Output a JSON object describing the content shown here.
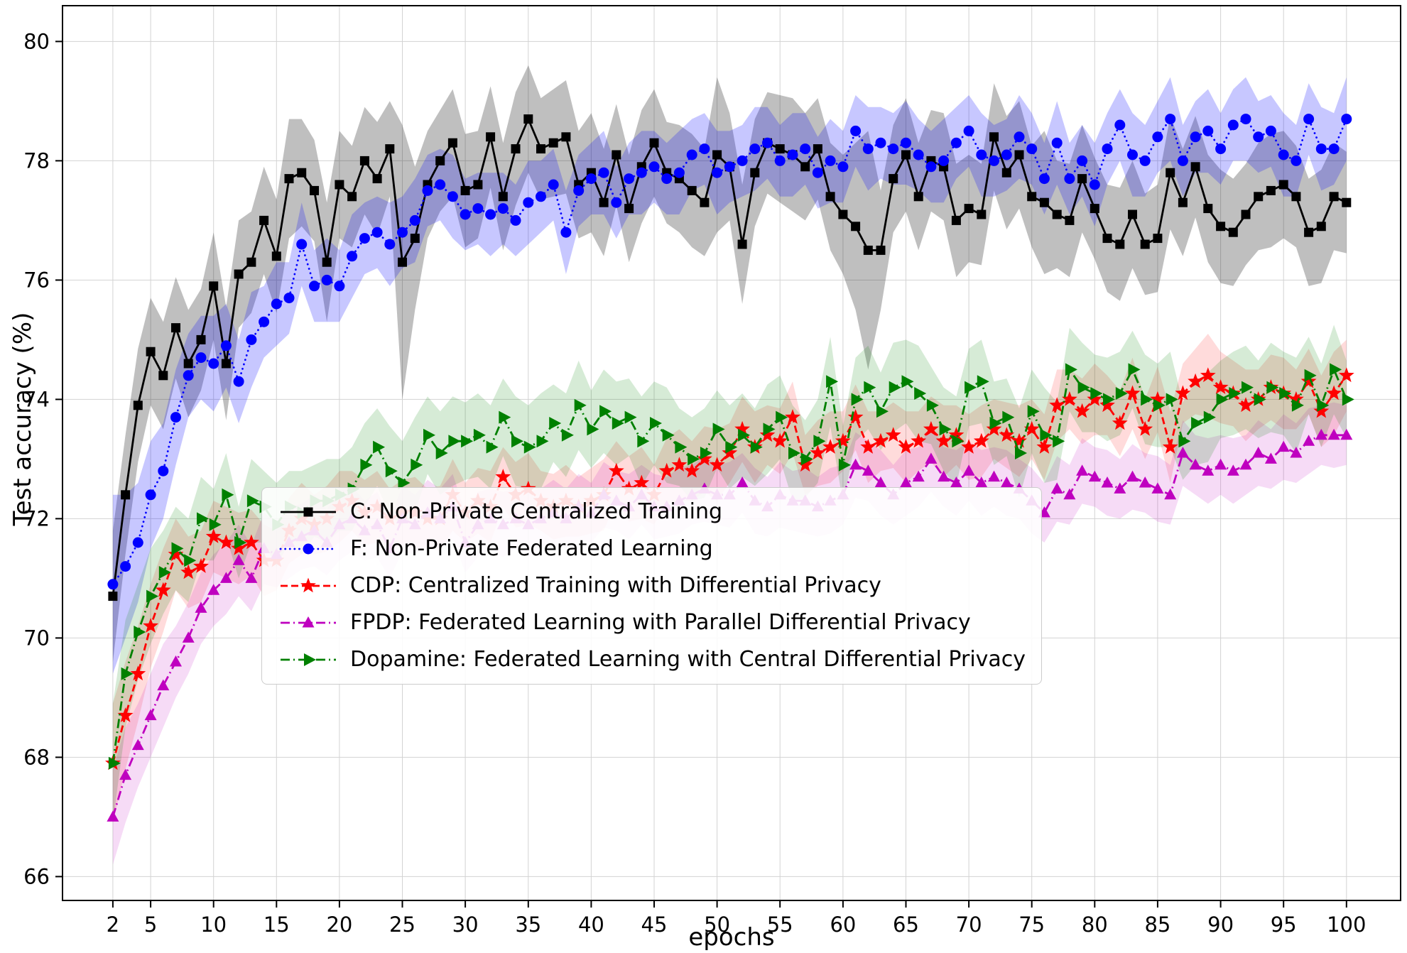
{
  "figure": {
    "xlabel": "epochs",
    "ylabel": "Test accuracy (%)"
  },
  "chart_data": {
    "type": "line",
    "title": "",
    "xlabel": "epochs",
    "ylabel": "Test accuracy (%)",
    "grid": true,
    "legend_position": "lower center, inside axes",
    "xlim": [
      -2,
      104.3
    ],
    "ylim": [
      65.6,
      80.6
    ],
    "xticks": [
      2,
      5,
      10,
      15,
      20,
      25,
      30,
      35,
      40,
      45,
      50,
      55,
      60,
      65,
      70,
      75,
      80,
      85,
      90,
      95,
      100
    ],
    "yticks": [
      66,
      68,
      70,
      72,
      74,
      76,
      78,
      80
    ],
    "x": [
      2,
      3,
      4,
      5,
      6,
      7,
      8,
      9,
      10,
      11,
      12,
      13,
      14,
      15,
      16,
      17,
      18,
      19,
      20,
      21,
      22,
      23,
      24,
      25,
      26,
      27,
      28,
      29,
      30,
      31,
      32,
      33,
      34,
      35,
      36,
      37,
      38,
      39,
      40,
      41,
      42,
      43,
      44,
      45,
      46,
      47,
      48,
      49,
      50,
      51,
      52,
      53,
      54,
      55,
      56,
      57,
      58,
      59,
      60,
      61,
      62,
      63,
      64,
      65,
      66,
      67,
      68,
      69,
      70,
      71,
      72,
      73,
      74,
      75,
      76,
      77,
      78,
      79,
      80,
      81,
      82,
      83,
      84,
      85,
      86,
      87,
      88,
      89,
      90,
      91,
      92,
      93,
      94,
      95,
      96,
      97,
      98,
      99,
      100
    ],
    "series": [
      {
        "id": "c",
        "label": "C: Non-Private Centralized Training",
        "color": "#000000",
        "marker": "square",
        "linestyle": "solid",
        "band_opacity": 0.25,
        "values": [
          70.7,
          72.4,
          73.9,
          74.8,
          74.4,
          75.2,
          74.6,
          75.0,
          75.9,
          74.6,
          76.1,
          76.3,
          77.0,
          76.4,
          77.7,
          77.8,
          77.5,
          76.3,
          77.6,
          77.4,
          78.0,
          77.7,
          78.2,
          76.3,
          76.7,
          77.6,
          78.0,
          78.3,
          77.5,
          77.6,
          78.4,
          77.4,
          78.2,
          78.7,
          78.2,
          78.3,
          78.4,
          77.6,
          77.8,
          77.3,
          78.1,
          77.2,
          77.9,
          78.3,
          77.8,
          77.7,
          77.5,
          77.3,
          78.1,
          77.9,
          76.6,
          77.8,
          78.3,
          78.2,
          78.1,
          77.9,
          78.2,
          77.4,
          77.1,
          76.9,
          76.5,
          76.5,
          77.7,
          78.1,
          77.4,
          78.0,
          77.9,
          77.0,
          77.2,
          77.1,
          78.4,
          77.8,
          78.1,
          77.4,
          77.3,
          77.1,
          77.0,
          77.7,
          77.2,
          76.7,
          76.6,
          77.1,
          76.6,
          76.7,
          77.8,
          77.3,
          77.9,
          77.2,
          76.9,
          76.8,
          77.1,
          77.4,
          77.5,
          77.6,
          77.4,
          76.8,
          76.9,
          77.4,
          77.3
        ],
        "band": [
          1.1,
          1.0,
          0.95,
          0.9,
          0.9,
          0.85,
          0.9,
          0.85,
          0.9,
          0.95,
          0.9,
          0.85,
          0.9,
          0.95,
          1.0,
          0.9,
          0.85,
          1.0,
          0.9,
          0.85,
          0.9,
          0.95,
          0.8,
          2.3,
          1.2,
          0.9,
          0.85,
          0.9,
          0.95,
          0.9,
          0.85,
          0.9,
          0.95,
          0.9,
          0.85,
          0.9,
          0.95,
          0.9,
          1.0,
          0.9,
          0.85,
          0.9,
          0.95,
          0.9,
          0.85,
          0.9,
          0.95,
          0.9,
          1.3,
          0.9,
          1.0,
          0.9,
          0.85,
          0.9,
          0.95,
          0.9,
          0.85,
          0.9,
          1.0,
          1.4,
          2.0,
          1.0,
          0.9,
          0.95,
          0.9,
          0.85,
          0.9,
          0.95,
          0.9,
          0.85,
          0.9,
          0.95,
          0.9,
          0.85,
          1.2,
          0.9,
          0.95,
          0.9,
          0.85,
          0.9,
          0.95,
          0.9,
          0.85,
          0.9,
          0.95,
          0.9,
          0.85,
          0.9,
          0.95,
          0.9,
          0.85,
          0.9,
          0.95,
          0.9,
          0.85,
          0.9,
          0.95,
          0.9,
          0.85
        ]
      },
      {
        "id": "f",
        "label": "F: Non-Private Federated Learning",
        "color": "#0000ff",
        "marker": "circle",
        "linestyle": "dotted",
        "band_opacity": 0.22,
        "values": [
          70.9,
          71.2,
          71.6,
          72.4,
          72.8,
          73.7,
          74.4,
          74.7,
          74.6,
          74.9,
          74.3,
          75.0,
          75.3,
          75.6,
          75.7,
          76.6,
          75.9,
          76.0,
          75.9,
          76.4,
          76.7,
          76.8,
          76.6,
          76.8,
          77.0,
          77.5,
          77.6,
          77.4,
          77.1,
          77.2,
          77.1,
          77.2,
          77.0,
          77.3,
          77.4,
          77.6,
          76.8,
          77.5,
          77.7,
          77.8,
          77.3,
          77.7,
          77.8,
          77.9,
          77.7,
          77.8,
          78.1,
          78.2,
          77.8,
          77.9,
          78.0,
          78.2,
          78.3,
          78.0,
          78.1,
          78.2,
          77.8,
          78.0,
          77.9,
          78.5,
          78.2,
          78.3,
          78.2,
          78.3,
          78.1,
          77.9,
          78.0,
          78.3,
          78.5,
          78.1,
          78.0,
          78.1,
          78.4,
          78.2,
          77.7,
          78.3,
          77.7,
          78.0,
          77.6,
          78.2,
          78.6,
          78.1,
          78.0,
          78.4,
          78.7,
          78.0,
          78.4,
          78.5,
          78.2,
          78.6,
          78.7,
          78.4,
          78.5,
          78.1,
          78.0,
          78.7,
          78.2,
          78.2,
          78.7
        ],
        "band": [
          1.5,
          1.2,
          1.0,
          0.9,
          0.8,
          0.8,
          0.7,
          0.7,
          0.8,
          0.7,
          0.7,
          0.8,
          0.6,
          0.7,
          0.6,
          0.7,
          0.6,
          0.7,
          0.6,
          0.7,
          0.6,
          0.6,
          0.7,
          0.6,
          0.7,
          0.6,
          0.6,
          0.7,
          0.6,
          0.6,
          0.7,
          0.6,
          0.6,
          0.7,
          0.6,
          0.6,
          0.7,
          0.6,
          0.6,
          0.7,
          0.6,
          0.6,
          0.7,
          0.6,
          0.6,
          0.7,
          0.6,
          0.6,
          0.7,
          0.6,
          0.6,
          0.7,
          0.6,
          0.6,
          0.7,
          0.6,
          0.6,
          0.7,
          0.6,
          0.6,
          0.7,
          0.6,
          0.6,
          0.7,
          0.6,
          0.6,
          0.7,
          0.6,
          0.6,
          0.7,
          0.6,
          0.6,
          0.7,
          0.6,
          0.6,
          0.7,
          0.6,
          0.6,
          0.7,
          0.6,
          0.6,
          0.7,
          0.6,
          0.6,
          0.7,
          0.6,
          0.6,
          0.7,
          0.6,
          0.6,
          0.7,
          0.6,
          0.6,
          0.7,
          0.6,
          0.6,
          0.7,
          0.6,
          0.7
        ]
      },
      {
        "id": "cdp",
        "label": "CDP: Centralized Training with Differential Privacy",
        "color": "#ff0000",
        "marker": "star",
        "linestyle": "dashed",
        "band_opacity": 0.14,
        "values": [
          67.9,
          68.7,
          69.4,
          70.2,
          70.8,
          71.4,
          71.1,
          71.2,
          71.7,
          71.6,
          71.5,
          71.6,
          71.3,
          71.3,
          71.8,
          72.0,
          71.9,
          72.0,
          72.2,
          72.3,
          72.1,
          72.2,
          72.0,
          72.1,
          72.1,
          72.0,
          72.0,
          72.4,
          72.1,
          72.3,
          72.2,
          72.7,
          72.4,
          72.5,
          72.3,
          72.2,
          72.3,
          72.2,
          72.3,
          72.4,
          72.8,
          72.5,
          72.6,
          72.4,
          72.8,
          72.9,
          72.8,
          73.0,
          72.9,
          73.1,
          73.5,
          73.2,
          73.4,
          73.3,
          73.7,
          72.9,
          73.1,
          73.2,
          73.3,
          73.7,
          73.2,
          73.3,
          73.4,
          73.2,
          73.3,
          73.5,
          73.3,
          73.4,
          73.2,
          73.3,
          73.5,
          73.4,
          73.3,
          73.5,
          73.2,
          73.9,
          74.0,
          73.8,
          74.0,
          73.9,
          73.6,
          74.1,
          73.5,
          74.0,
          73.2,
          74.1,
          74.3,
          74.4,
          74.2,
          74.1,
          73.9,
          74.0,
          74.2,
          74.1,
          74.0,
          74.3,
          73.8,
          74.1,
          74.4
        ],
        "band": [
          1.0,
          0.9,
          0.8,
          0.7,
          0.7,
          0.6,
          0.6,
          0.6,
          0.6,
          0.6,
          0.6,
          0.55,
          0.6,
          0.5,
          0.55,
          0.6,
          0.5,
          0.55,
          0.6,
          0.5,
          0.55,
          0.6,
          0.5,
          0.55,
          0.6,
          0.5,
          0.55,
          0.6,
          0.5,
          0.55,
          0.6,
          0.5,
          0.55,
          0.6,
          0.5,
          0.55,
          0.6,
          0.5,
          0.55,
          0.6,
          0.5,
          0.55,
          0.6,
          0.5,
          0.55,
          0.6,
          0.5,
          0.55,
          0.6,
          0.5,
          0.55,
          0.6,
          0.5,
          0.55,
          0.6,
          0.5,
          0.55,
          0.6,
          0.5,
          0.55,
          0.6,
          0.5,
          0.55,
          0.6,
          0.5,
          0.55,
          0.6,
          0.5,
          0.55,
          0.6,
          0.5,
          0.55,
          0.6,
          0.5,
          0.55,
          0.6,
          0.5,
          0.55,
          0.6,
          0.5,
          0.55,
          0.6,
          0.5,
          0.55,
          0.6,
          0.5,
          0.55,
          0.7,
          0.6,
          0.55,
          0.6,
          0.5,
          0.55,
          0.6,
          0.5,
          0.55,
          0.6,
          0.7,
          0.6
        ]
      },
      {
        "id": "fpdp",
        "label": "FPDP: Federated Learning with Parallel Differential Privacy",
        "color": "#bf00bf",
        "marker": "triangle-up",
        "linestyle": "dashdot",
        "band_opacity": 0.14,
        "values": [
          67.0,
          67.7,
          68.2,
          68.7,
          69.2,
          69.6,
          70.0,
          70.5,
          70.8,
          71.0,
          71.3,
          71.0,
          71.5,
          71.4,
          71.6,
          71.7,
          71.8,
          71.6,
          71.9,
          72.0,
          71.8,
          71.9,
          71.5,
          72.0,
          71.9,
          72.1,
          72.0,
          72.2,
          71.6,
          71.9,
          72.0,
          71.9,
          72.0,
          71.9,
          72.0,
          72.1,
          72.0,
          72.2,
          72.1,
          72.4,
          72.3,
          72.2,
          72.4,
          72.2,
          72.2,
          72.3,
          72.4,
          72.5,
          72.4,
          72.4,
          72.6,
          72.3,
          72.2,
          72.4,
          72.3,
          72.3,
          72.2,
          72.3,
          72.4,
          72.9,
          72.8,
          72.6,
          72.4,
          72.6,
          72.7,
          73.0,
          72.7,
          72.6,
          72.8,
          72.6,
          72.7,
          72.6,
          72.5,
          72.3,
          72.1,
          72.5,
          72.4,
          72.8,
          72.7,
          72.6,
          72.5,
          72.7,
          72.6,
          72.5,
          72.4,
          73.1,
          72.9,
          72.8,
          72.9,
          72.8,
          72.9,
          73.1,
          73.0,
          73.2,
          73.1,
          73.3,
          73.4,
          73.4,
          73.4
        ],
        "band": [
          0.8,
          0.8,
          0.7,
          0.7,
          0.7,
          0.6,
          0.6,
          0.6,
          0.6,
          0.6,
          0.6,
          0.55,
          0.6,
          0.55,
          0.6,
          0.55,
          0.6,
          0.55,
          0.6,
          0.55,
          0.5,
          0.55,
          0.5,
          0.55,
          0.5,
          0.55,
          0.5,
          0.55,
          0.5,
          0.55,
          0.5,
          0.55,
          0.5,
          0.55,
          0.5,
          0.55,
          0.5,
          0.55,
          0.5,
          0.55,
          0.5,
          0.55,
          0.5,
          0.55,
          0.5,
          0.55,
          0.5,
          0.55,
          0.5,
          0.55,
          0.5,
          0.55,
          0.5,
          0.55,
          0.5,
          0.55,
          0.5,
          0.55,
          0.5,
          0.55,
          0.5,
          0.55,
          0.5,
          0.55,
          0.5,
          0.55,
          0.5,
          0.55,
          0.5,
          0.55,
          0.5,
          0.55,
          0.5,
          0.55,
          0.5,
          0.55,
          0.5,
          0.55,
          0.5,
          0.55,
          0.5,
          0.55,
          0.5,
          0.55,
          0.5,
          0.55,
          0.5,
          0.55,
          0.5,
          0.55,
          0.5,
          0.55,
          0.5,
          0.55,
          0.5,
          0.55,
          0.5,
          0.55,
          0.5
        ]
      },
      {
        "id": "dopamine",
        "label": "Dopamine: Federated Learning with Central Differential Privacy",
        "color": "#008000",
        "marker": "triangle-right",
        "linestyle": "dashdot",
        "band_opacity": 0.16,
        "values": [
          67.9,
          69.4,
          70.1,
          70.7,
          71.1,
          71.5,
          71.3,
          72.0,
          71.9,
          72.4,
          71.6,
          72.3,
          72.2,
          71.9,
          72.2,
          72.1,
          72.3,
          72.3,
          72.4,
          72.5,
          72.9,
          73.2,
          72.8,
          72.6,
          72.9,
          73.4,
          73.1,
          73.3,
          73.3,
          73.4,
          73.2,
          73.7,
          73.3,
          73.2,
          73.3,
          73.6,
          73.4,
          73.9,
          73.5,
          73.8,
          73.6,
          73.7,
          73.3,
          73.6,
          73.4,
          73.2,
          73.0,
          73.1,
          73.5,
          73.2,
          73.4,
          73.2,
          73.5,
          73.7,
          73.1,
          73.0,
          73.3,
          74.3,
          72.9,
          74.0,
          74.2,
          73.8,
          74.2,
          74.3,
          74.1,
          73.9,
          73.5,
          73.3,
          74.2,
          74.3,
          73.6,
          73.7,
          73.1,
          73.8,
          73.4,
          73.3,
          74.5,
          74.2,
          74.1,
          74.0,
          74.1,
          74.5,
          74.0,
          73.9,
          74.0,
          73.3,
          73.6,
          73.7,
          74.0,
          74.1,
          74.2,
          74.0,
          74.2,
          74.1,
          73.9,
          74.4,
          73.9,
          74.5,
          74.0
        ],
        "band": [
          1.0,
          0.9,
          0.8,
          0.8,
          0.7,
          0.7,
          0.7,
          0.7,
          0.6,
          0.7,
          0.6,
          0.7,
          0.6,
          0.7,
          0.6,
          0.7,
          0.6,
          0.7,
          0.6,
          0.7,
          0.7,
          0.65,
          0.75,
          0.7,
          0.8,
          0.65,
          0.7,
          0.75,
          0.65,
          0.7,
          0.7,
          0.65,
          0.75,
          0.7,
          0.8,
          0.65,
          0.7,
          0.75,
          0.65,
          0.7,
          0.7,
          0.65,
          0.75,
          0.7,
          0.8,
          0.65,
          0.7,
          0.75,
          0.65,
          0.7,
          0.7,
          0.65,
          0.75,
          0.7,
          0.8,
          0.65,
          0.7,
          0.75,
          0.65,
          0.7,
          0.7,
          0.65,
          0.75,
          0.7,
          0.8,
          0.65,
          0.7,
          0.75,
          0.65,
          0.7,
          0.7,
          0.65,
          0.75,
          0.7,
          0.8,
          0.65,
          0.7,
          0.75,
          0.65,
          0.7,
          0.7,
          0.65,
          0.75,
          0.7,
          0.8,
          0.65,
          0.7,
          0.75,
          0.65,
          0.7,
          0.7,
          0.65,
          0.75,
          0.7,
          0.8,
          0.65,
          0.7,
          0.75,
          0.65
        ]
      }
    ]
  }
}
